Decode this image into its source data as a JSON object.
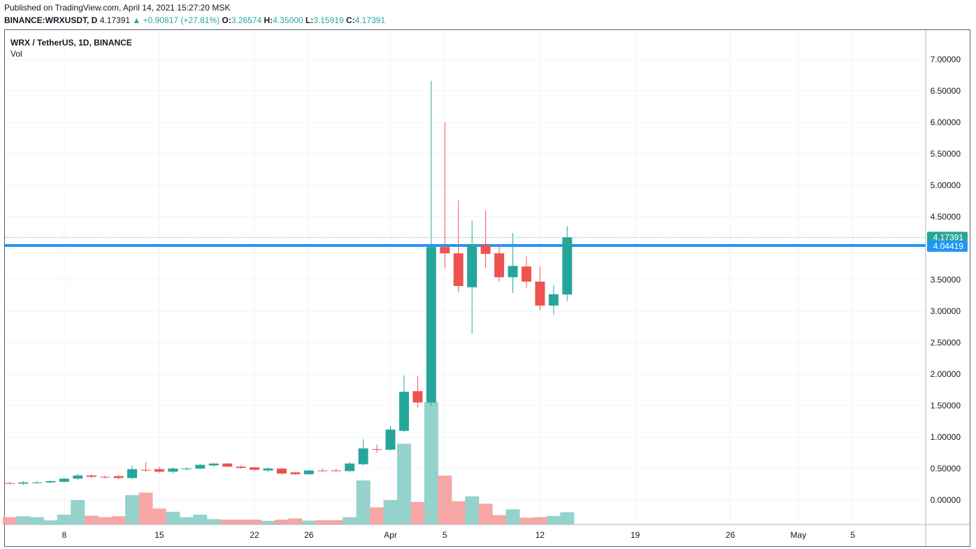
{
  "header": {
    "published": "Published on TradingView.com, April 14, 2021 15:27:20 MSK",
    "symbol_line": "BINANCE:WRXUSDT, D",
    "last": "4.17391",
    "change": "+0.90817 (+27.81%)",
    "o_label": "O:",
    "o_value": "3.26574",
    "h_label": "H:",
    "h_value": "4.35000",
    "l_label": "L:",
    "l_value": "3.15919",
    "c_label": "C:",
    "c_value": "4.17391"
  },
  "legend": {
    "symbol": "WRX / TetherUS, 1D, BINANCE",
    "volume": "Vol"
  },
  "colors": {
    "up": "#26a69a",
    "down": "#ef5350",
    "up_vol": "#94d2cb",
    "down_vol": "#f5a6a5",
    "hline": "#2196f3",
    "grid": "#f0f3fa"
  },
  "chart_data": {
    "type": "candlestick",
    "title": "WRX / TetherUS, 1D, BINANCE",
    "xlabel": "",
    "ylabel": "",
    "ylim": [
      -0.3,
      7.3
    ],
    "y_ticks": [
      "7.00000",
      "6.50000",
      "6.00000",
      "5.50000",
      "5.00000",
      "4.50000",
      "4.00000",
      "3.50000",
      "3.00000",
      "2.50000",
      "2.00000",
      "1.50000",
      "1.00000",
      "0.50000",
      "0.00000"
    ],
    "x_tick_labels": [
      {
        "date": "2021-03-08",
        "label": "8"
      },
      {
        "date": "2021-03-15",
        "label": "15"
      },
      {
        "date": "2021-03-22",
        "label": "22"
      },
      {
        "date": "2021-03-26",
        "label": "26"
      },
      {
        "date": "2021-04-01",
        "label": "Apr"
      },
      {
        "date": "2021-04-05",
        "label": "5"
      },
      {
        "date": "2021-04-12",
        "label": "12"
      },
      {
        "date": "2021-04-19",
        "label": "19"
      },
      {
        "date": "2021-04-26",
        "label": "26"
      },
      {
        "date": "2021-05-01",
        "label": "May"
      },
      {
        "date": "2021-05-05",
        "label": "5"
      }
    ],
    "x_range": [
      "2021-03-04",
      "2021-05-08"
    ],
    "candles": [
      {
        "date": "2021-03-04",
        "o": 0.27,
        "h": 0.29,
        "l": 0.25,
        "c": 0.26
      },
      {
        "date": "2021-03-05",
        "o": 0.26,
        "h": 0.3,
        "l": 0.24,
        "c": 0.28
      },
      {
        "date": "2021-03-06",
        "o": 0.28,
        "h": 0.3,
        "l": 0.26,
        "c": 0.28
      },
      {
        "date": "2021-03-07",
        "o": 0.28,
        "h": 0.31,
        "l": 0.27,
        "c": 0.3
      },
      {
        "date": "2021-03-08",
        "o": 0.29,
        "h": 0.35,
        "l": 0.28,
        "c": 0.34
      },
      {
        "date": "2021-03-09",
        "o": 0.34,
        "h": 0.42,
        "l": 0.32,
        "c": 0.39
      },
      {
        "date": "2021-03-10",
        "o": 0.39,
        "h": 0.41,
        "l": 0.35,
        "c": 0.37
      },
      {
        "date": "2021-03-11",
        "o": 0.37,
        "h": 0.39,
        "l": 0.34,
        "c": 0.36
      },
      {
        "date": "2021-03-12",
        "o": 0.38,
        "h": 0.4,
        "l": 0.33,
        "c": 0.35
      },
      {
        "date": "2021-03-13",
        "o": 0.35,
        "h": 0.55,
        "l": 0.33,
        "c": 0.49
      },
      {
        "date": "2021-03-14",
        "o": 0.48,
        "h": 0.6,
        "l": 0.45,
        "c": 0.47
      },
      {
        "date": "2021-03-15",
        "o": 0.49,
        "h": 0.53,
        "l": 0.43,
        "c": 0.45
      },
      {
        "date": "2021-03-16",
        "o": 0.45,
        "h": 0.52,
        "l": 0.42,
        "c": 0.5
      },
      {
        "date": "2021-03-17",
        "o": 0.49,
        "h": 0.52,
        "l": 0.47,
        "c": 0.5
      },
      {
        "date": "2021-03-18",
        "o": 0.5,
        "h": 0.57,
        "l": 0.49,
        "c": 0.56
      },
      {
        "date": "2021-03-19",
        "o": 0.55,
        "h": 0.59,
        "l": 0.53,
        "c": 0.58
      },
      {
        "date": "2021-03-20",
        "o": 0.58,
        "h": 0.59,
        "l": 0.52,
        "c": 0.53
      },
      {
        "date": "2021-03-21",
        "o": 0.53,
        "h": 0.55,
        "l": 0.5,
        "c": 0.51
      },
      {
        "date": "2021-03-22",
        "o": 0.52,
        "h": 0.53,
        "l": 0.46,
        "c": 0.48
      },
      {
        "date": "2021-03-23",
        "o": 0.47,
        "h": 0.52,
        "l": 0.45,
        "c": 0.5
      },
      {
        "date": "2021-03-24",
        "o": 0.5,
        "h": 0.51,
        "l": 0.41,
        "c": 0.42
      },
      {
        "date": "2021-03-25",
        "o": 0.44,
        "h": 0.45,
        "l": 0.4,
        "c": 0.41
      },
      {
        "date": "2021-03-26",
        "o": 0.41,
        "h": 0.48,
        "l": 0.4,
        "c": 0.47
      },
      {
        "date": "2021-03-27",
        "o": 0.47,
        "h": 0.5,
        "l": 0.45,
        "c": 0.46
      },
      {
        "date": "2021-03-28",
        "o": 0.47,
        "h": 0.5,
        "l": 0.45,
        "c": 0.46
      },
      {
        "date": "2021-03-29",
        "o": 0.46,
        "h": 0.6,
        "l": 0.45,
        "c": 0.58
      },
      {
        "date": "2021-03-30",
        "o": 0.57,
        "h": 0.97,
        "l": 0.55,
        "c": 0.82
      },
      {
        "date": "2021-03-31",
        "o": 0.81,
        "h": 0.88,
        "l": 0.75,
        "c": 0.8
      },
      {
        "date": "2021-04-01",
        "o": 0.8,
        "h": 1.18,
        "l": 0.79,
        "c": 1.12
      },
      {
        "date": "2021-04-02",
        "o": 1.1,
        "h": 1.98,
        "l": 1.08,
        "c": 1.72
      },
      {
        "date": "2021-04-03",
        "o": 1.73,
        "h": 1.97,
        "l": 1.47,
        "c": 1.55
      },
      {
        "date": "2021-04-04",
        "o": 1.55,
        "h": 6.66,
        "l": 1.5,
        "c": 4.02
      },
      {
        "date": "2021-04-05",
        "o": 4.02,
        "h": 6.0,
        "l": 3.68,
        "c": 3.92
      },
      {
        "date": "2021-04-06",
        "o": 3.92,
        "h": 4.76,
        "l": 3.3,
        "c": 3.4
      },
      {
        "date": "2021-04-07",
        "o": 3.38,
        "h": 4.44,
        "l": 2.64,
        "c": 4.05
      },
      {
        "date": "2021-04-08",
        "o": 4.05,
        "h": 4.6,
        "l": 3.69,
        "c": 3.91
      },
      {
        "date": "2021-04-09",
        "o": 3.92,
        "h": 4.07,
        "l": 3.47,
        "c": 3.54
      },
      {
        "date": "2021-04-10",
        "o": 3.54,
        "h": 4.24,
        "l": 3.29,
        "c": 3.72
      },
      {
        "date": "2021-04-11",
        "o": 3.71,
        "h": 3.87,
        "l": 3.37,
        "c": 3.47
      },
      {
        "date": "2021-04-12",
        "o": 3.47,
        "h": 3.71,
        "l": 3.01,
        "c": 3.09
      },
      {
        "date": "2021-04-13",
        "o": 3.09,
        "h": 3.41,
        "l": 2.95,
        "c": 3.27
      },
      {
        "date": "2021-04-14",
        "o": 3.26574,
        "h": 4.35,
        "l": 3.15919,
        "c": 4.17391
      }
    ],
    "volume": [
      0.3,
      0.34,
      0.3,
      0.17,
      0.4,
      1.0,
      0.36,
      0.3,
      0.34,
      1.2,
      1.3,
      0.65,
      0.52,
      0.3,
      0.4,
      0.22,
      0.2,
      0.2,
      0.2,
      0.15,
      0.2,
      0.25,
      0.16,
      0.18,
      0.18,
      0.3,
      1.8,
      0.7,
      1.0,
      3.3,
      0.92,
      5.0,
      2.0,
      0.95,
      1.15,
      0.85,
      0.38,
      0.62,
      0.28,
      0.3,
      0.35,
      0.5
    ],
    "last_price_label": "4.17391",
    "horizontal_line": {
      "value": 4.04419,
      "label": "4.04419"
    }
  }
}
